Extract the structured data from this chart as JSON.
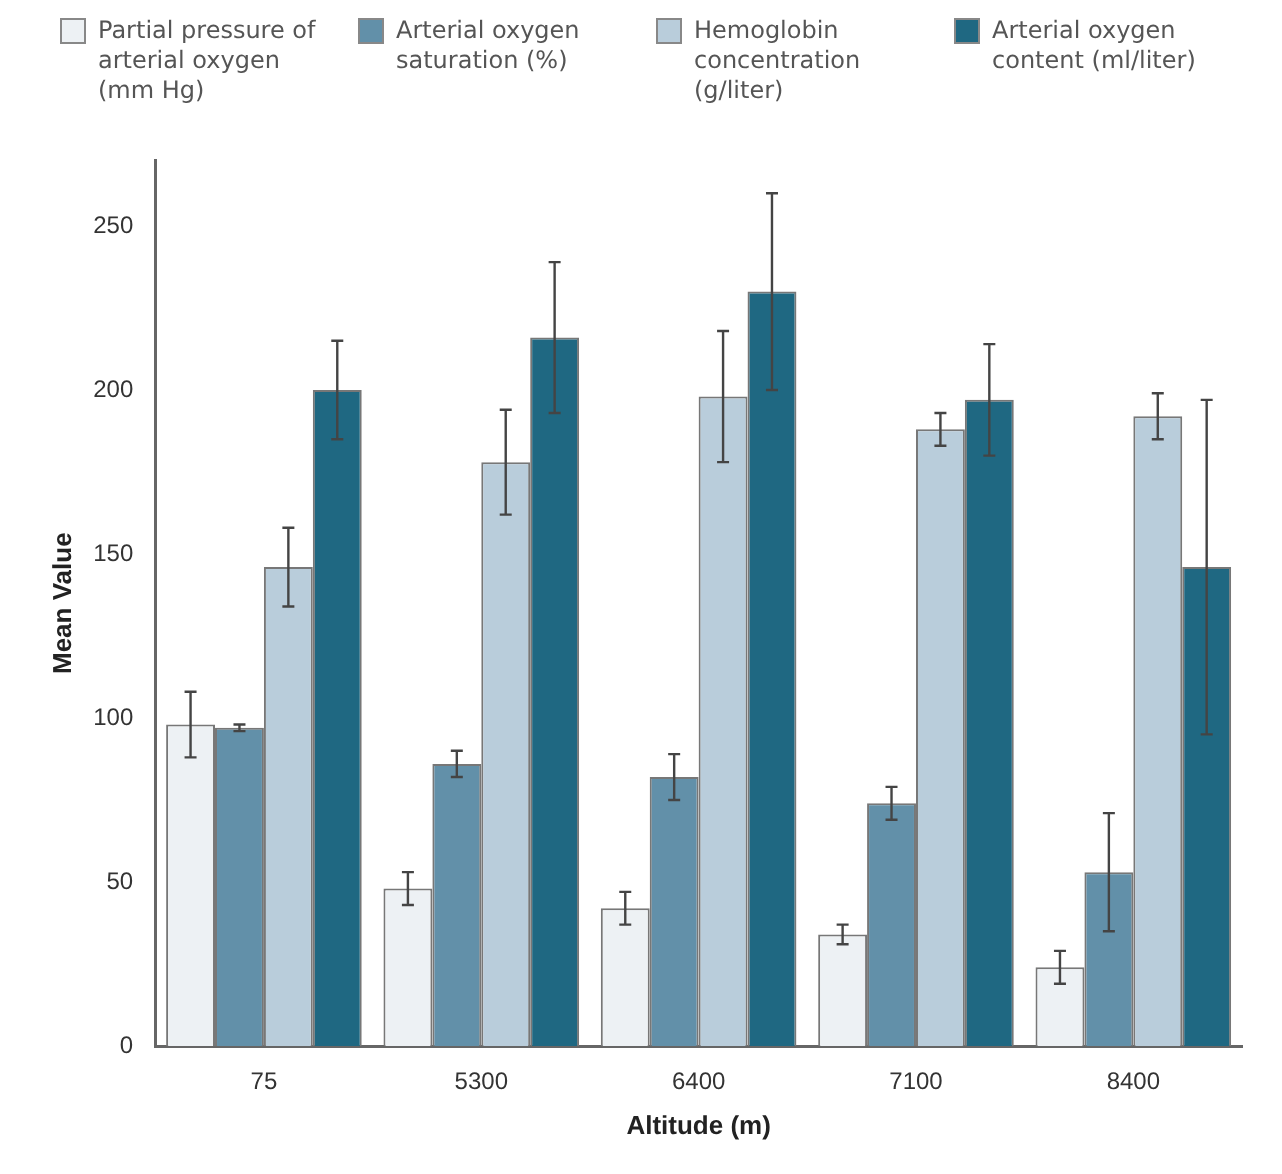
{
  "chart_data": {
    "type": "bar",
    "xlabel": "Altitude (m)",
    "ylabel": "Mean Value",
    "categories": [
      "75",
      "5300",
      "6400",
      "7100",
      "8400"
    ],
    "series": [
      {
        "name": "Partial pressure of arterial oxygen (mm Hg)",
        "color": "#edf1f4",
        "values": [
          98,
          48,
          42,
          34,
          24
        ],
        "errors": [
          10,
          5,
          5,
          3,
          5
        ]
      },
      {
        "name": "Arterial oxygen saturation (%)",
        "color": "#6290a9",
        "values": [
          97,
          86,
          82,
          74,
          53
        ],
        "errors": [
          1,
          4,
          7,
          5,
          18
        ]
      },
      {
        "name": "Hemoglobin concentration (g/liter)",
        "color": "#b9cddb",
        "values": [
          146,
          178,
          198,
          188,
          192
        ],
        "errors": [
          12,
          16,
          20,
          5,
          7
        ]
      },
      {
        "name": "Arterial oxygen content (ml/liter)",
        "color": "#1f6882",
        "values": [
          200,
          216,
          230,
          197,
          146
        ],
        "errors": [
          15,
          23,
          30,
          17,
          51
        ]
      }
    ],
    "ylim": [
      0,
      270
    ],
    "yticks": [
      0,
      50,
      100,
      150,
      200,
      250
    ],
    "grid": false,
    "legend": "top"
  }
}
